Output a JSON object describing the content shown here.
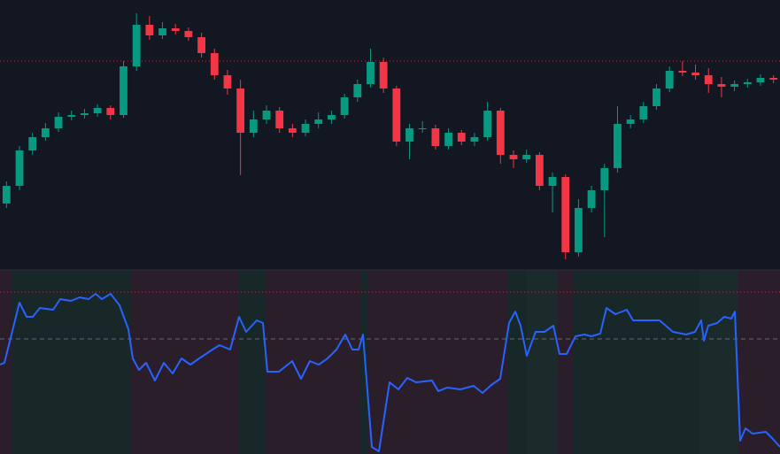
{
  "chart_data": [
    {
      "type": "candlestick",
      "ylim": [
        0,
        300
      ],
      "up_color": "#089981",
      "down_color": "#f23645",
      "reference_lines": [
        {
          "value": 236,
          "color": "#f23645",
          "style": "dotted"
        }
      ],
      "open": [
        75,
        95,
        135,
        150,
        160,
        173,
        175,
        177,
        183,
        175,
        230,
        277,
        265,
        273,
        270,
        263,
        245,
        220,
        205,
        155,
        170,
        180,
        160,
        155,
        165,
        170,
        175,
        195,
        210,
        235,
        205,
        145,
        160,
        160,
        140,
        155,
        145,
        150,
        180,
        130,
        125,
        130,
        95,
        105,
        20,
        70,
        90,
        115,
        165,
        170,
        185,
        205,
        225,
        223,
        220,
        210,
        207,
        210,
        212,
        217
      ],
      "high": [
        100,
        140,
        155,
        166,
        178,
        180,
        182,
        187,
        186,
        236,
        290,
        287,
        280,
        278,
        274,
        268,
        250,
        226,
        215,
        180,
        186,
        184,
        165,
        170,
        178,
        180,
        199,
        215,
        250,
        240,
        208,
        165,
        168,
        164,
        160,
        158,
        155,
        190,
        183,
        135,
        136,
        133,
        110,
        108,
        80,
        95,
        120,
        185,
        175,
        190,
        210,
        230,
        236,
        232,
        228,
        218,
        214,
        216,
        221,
        220
      ],
      "low": [
        70,
        90,
        130,
        146,
        156,
        169,
        171,
        173,
        170,
        172,
        225,
        260,
        261,
        266,
        259,
        240,
        215,
        198,
        107,
        150,
        165,
        155,
        150,
        151,
        160,
        165,
        171,
        190,
        206,
        200,
        140,
        125,
        155,
        136,
        136,
        141,
        140,
        146,
        120,
        115,
        121,
        90,
        65,
        12,
        15,
        65,
        37,
        110,
        160,
        166,
        181,
        201,
        219,
        215,
        200,
        195,
        202,
        206,
        208,
        211
      ],
      "close": [
        95,
        135,
        150,
        160,
        173,
        175,
        177,
        183,
        175,
        230,
        277,
        265,
        273,
        270,
        263,
        245,
        220,
        205,
        155,
        170,
        180,
        160,
        155,
        165,
        170,
        175,
        195,
        210,
        235,
        205,
        145,
        160,
        160,
        140,
        155,
        145,
        150,
        180,
        130,
        125,
        130,
        95,
        105,
        20,
        70,
        90,
        115,
        165,
        170,
        185,
        205,
        225,
        223,
        220,
        210,
        207,
        210,
        212,
        217,
        215
      ]
    },
    {
      "type": "line",
      "ylim": [
        0,
        104
      ],
      "xlim": [
        0,
        881
      ],
      "color": "#2962ff",
      "reference_lines": [
        {
          "value": 91.5,
          "color": "#f23645",
          "style": "dotted"
        },
        {
          "value": 65,
          "color": "#787b86",
          "style": "dashed"
        }
      ],
      "regions": [
        {
          "start": 0,
          "end": 14,
          "color": "#2a1e2b"
        },
        {
          "start": 14,
          "end": 148,
          "color": "#182728"
        },
        {
          "start": 148,
          "end": 270,
          "color": "#2a1e2b"
        },
        {
          "start": 270,
          "end": 300,
          "color": "#182728"
        },
        {
          "start": 300,
          "end": 408,
          "color": "#2a1e2b"
        },
        {
          "start": 408,
          "end": 415,
          "color": "#182728"
        },
        {
          "start": 415,
          "end": 573,
          "color": "#2a1e2b"
        },
        {
          "start": 573,
          "end": 595,
          "color": "#182728"
        },
        {
          "start": 595,
          "end": 630,
          "color": "#1b2a2a"
        },
        {
          "start": 630,
          "end": 648,
          "color": "#2a1e2b"
        },
        {
          "start": 648,
          "end": 790,
          "color": "#182728"
        },
        {
          "start": 790,
          "end": 834,
          "color": "#1b2a2a"
        },
        {
          "start": 834,
          "end": 881,
          "color": "#2a1e2b"
        }
      ],
      "x": [
        0,
        5,
        22,
        30,
        37,
        45,
        60,
        68,
        80,
        90,
        100,
        108,
        115,
        125,
        135,
        145,
        150,
        157,
        165,
        175,
        185,
        195,
        205,
        215,
        225,
        240,
        248,
        260,
        270,
        278,
        290,
        297,
        302,
        315,
        330,
        340,
        350,
        360,
        370,
        380,
        390,
        398,
        405,
        410,
        420,
        428,
        440,
        450,
        460,
        470,
        488,
        495,
        505,
        520,
        535,
        545,
        555,
        565,
        575,
        582,
        588,
        595,
        605,
        615,
        625,
        632,
        640,
        650,
        660,
        668,
        678,
        685,
        695,
        708,
        715,
        735,
        745,
        760,
        775,
        785,
        792,
        795,
        800,
        810,
        818,
        826,
        830,
        836,
        842,
        850,
        865,
        872,
        881
      ],
      "values": [
        50.5,
        51.5,
        85.5,
        77.5,
        77.5,
        82.5,
        81.5,
        87.5,
        86.5,
        88.5,
        87.5,
        90.5,
        87.5,
        90.5,
        84,
        70.5,
        54,
        47.5,
        51.5,
        41.5,
        51.5,
        45.5,
        54,
        50.5,
        54,
        59,
        61.5,
        59,
        77.5,
        69,
        75.5,
        74,
        46.5,
        46.5,
        52.5,
        42.5,
        52.5,
        50.5,
        54,
        59,
        67.5,
        59,
        59,
        67.5,
        4,
        1.5,
        40.5,
        36.5,
        43,
        40.5,
        41.5,
        35.5,
        37.5,
        36.5,
        38.5,
        34.5,
        39,
        42.5,
        74,
        80.5,
        72.5,
        55.5,
        69,
        69,
        72.5,
        56.5,
        56.5,
        66.5,
        67.5,
        66.5,
        68,
        82.5,
        79,
        81.5,
        75.5,
        75.5,
        75.5,
        69,
        67.5,
        69,
        75.5,
        64,
        72.5,
        74,
        77.5,
        76.5,
        80.5,
        7.5,
        14.5,
        11.5,
        12.5,
        9,
        4
      ]
    }
  ]
}
